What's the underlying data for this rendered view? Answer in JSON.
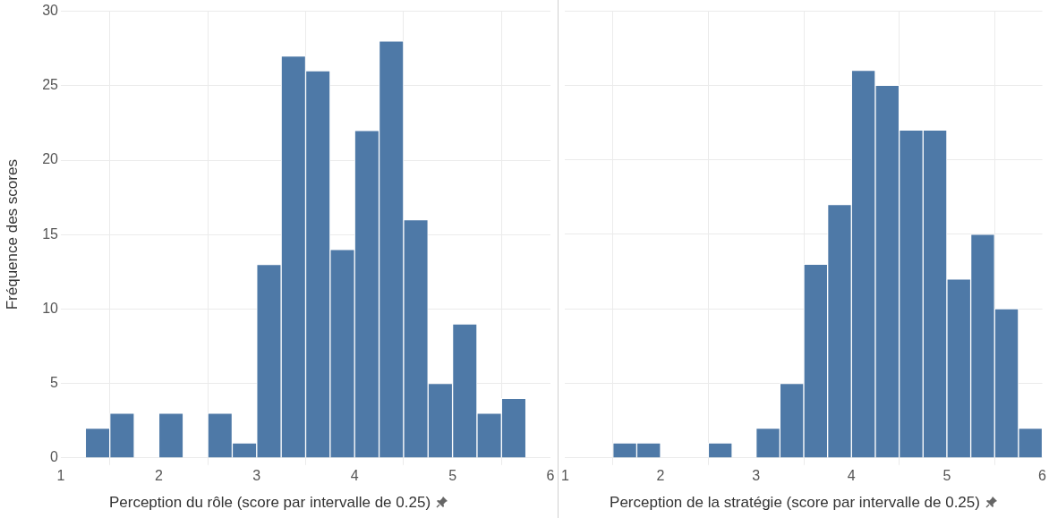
{
  "chart_data": [
    {
      "type": "histogram",
      "ylabel": "Fréquence des scores",
      "xlabel": "Perception du rôle (score par intervalle de 0.25)",
      "color": "#4e79a7",
      "bins": [
        1.25,
        1.5,
        1.75,
        2,
        2.25,
        2.5,
        2.75,
        3,
        3.25,
        3.5,
        3.75,
        4,
        4.25,
        4.5,
        4.75,
        5,
        5.25,
        5.5,
        5.75
      ],
      "values": [
        2,
        3,
        0,
        3,
        0,
        3,
        1,
        13,
        27,
        26,
        14,
        22,
        28,
        16,
        5,
        9,
        3,
        4
      ],
      "xlim": [
        1,
        6
      ],
      "xticks": [
        1,
        2,
        3,
        4,
        5,
        6
      ],
      "ylim": [
        0,
        30
      ],
      "yticks": [
        0,
        5,
        10,
        15,
        20,
        25,
        30
      ],
      "grid": true
    },
    {
      "type": "histogram",
      "xlabel": "Perception de la stratégie (score par intervalle de 0.25)",
      "color": "#4e79a7",
      "bins": [
        1.5,
        1.75,
        2,
        2.25,
        2.5,
        2.75,
        3,
        3.25,
        3.5,
        3.75,
        4,
        4.25,
        4.5,
        4.75,
        5,
        5.25,
        5.5,
        5.75,
        6
      ],
      "values": [
        1,
        1,
        0,
        0,
        1,
        0,
        2,
        5,
        13,
        17,
        26,
        25,
        22,
        22,
        12,
        15,
        10,
        2
      ],
      "xlim": [
        1,
        6
      ],
      "xticks": [
        1,
        2,
        3,
        4,
        5,
        6
      ],
      "ylim": [
        0,
        30
      ],
      "yticks": [
        0,
        5,
        10,
        15,
        20,
        25,
        30
      ],
      "grid": true,
      "tick_labels": "x"
    }
  ]
}
